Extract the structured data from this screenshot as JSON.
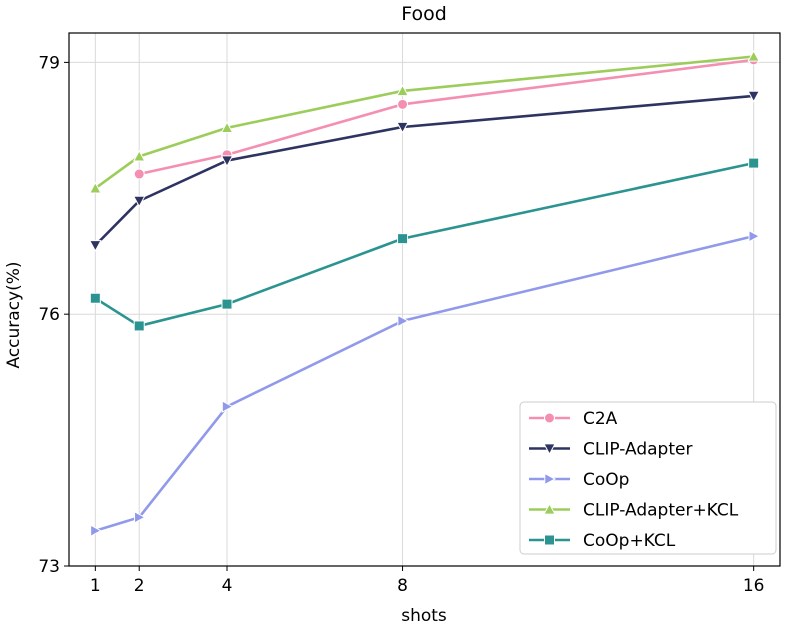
{
  "chart_data": {
    "type": "line",
    "title": "Food",
    "xlabel": "shots",
    "ylabel": "Accuracy(%)",
    "x": [
      1,
      2,
      4,
      8,
      16
    ],
    "xlim": [
      0.4,
      16.6
    ],
    "ylim": [
      73,
      79.35
    ],
    "xticks": [
      1,
      2,
      4,
      8,
      16
    ],
    "yticks": [
      73,
      76,
      79
    ],
    "grid": true,
    "legend_position": "lower-right",
    "series": [
      {
        "name": "C2A",
        "values": [
          null,
          77.67,
          77.9,
          78.5,
          79.03
        ],
        "color": "#f48fb1",
        "marker": "circle"
      },
      {
        "name": "CLIP-Adapter",
        "values": [
          76.82,
          77.35,
          77.83,
          78.23,
          78.6
        ],
        "color": "#2e3461",
        "marker": "triangle-down"
      },
      {
        "name": "CoOp",
        "values": [
          73.42,
          73.58,
          74.9,
          75.92,
          76.93
        ],
        "color": "#9199ea",
        "marker": "triangle-right"
      },
      {
        "name": "CLIP-Adapter+KCL",
        "values": [
          77.5,
          77.88,
          78.22,
          78.66,
          79.07
        ],
        "color": "#9ccd5b",
        "marker": "triangle-up"
      },
      {
        "name": "CoOp+KCL",
        "values": [
          76.19,
          75.86,
          76.12,
          76.9,
          77.8
        ],
        "color": "#2b9490",
        "marker": "square"
      }
    ]
  }
}
